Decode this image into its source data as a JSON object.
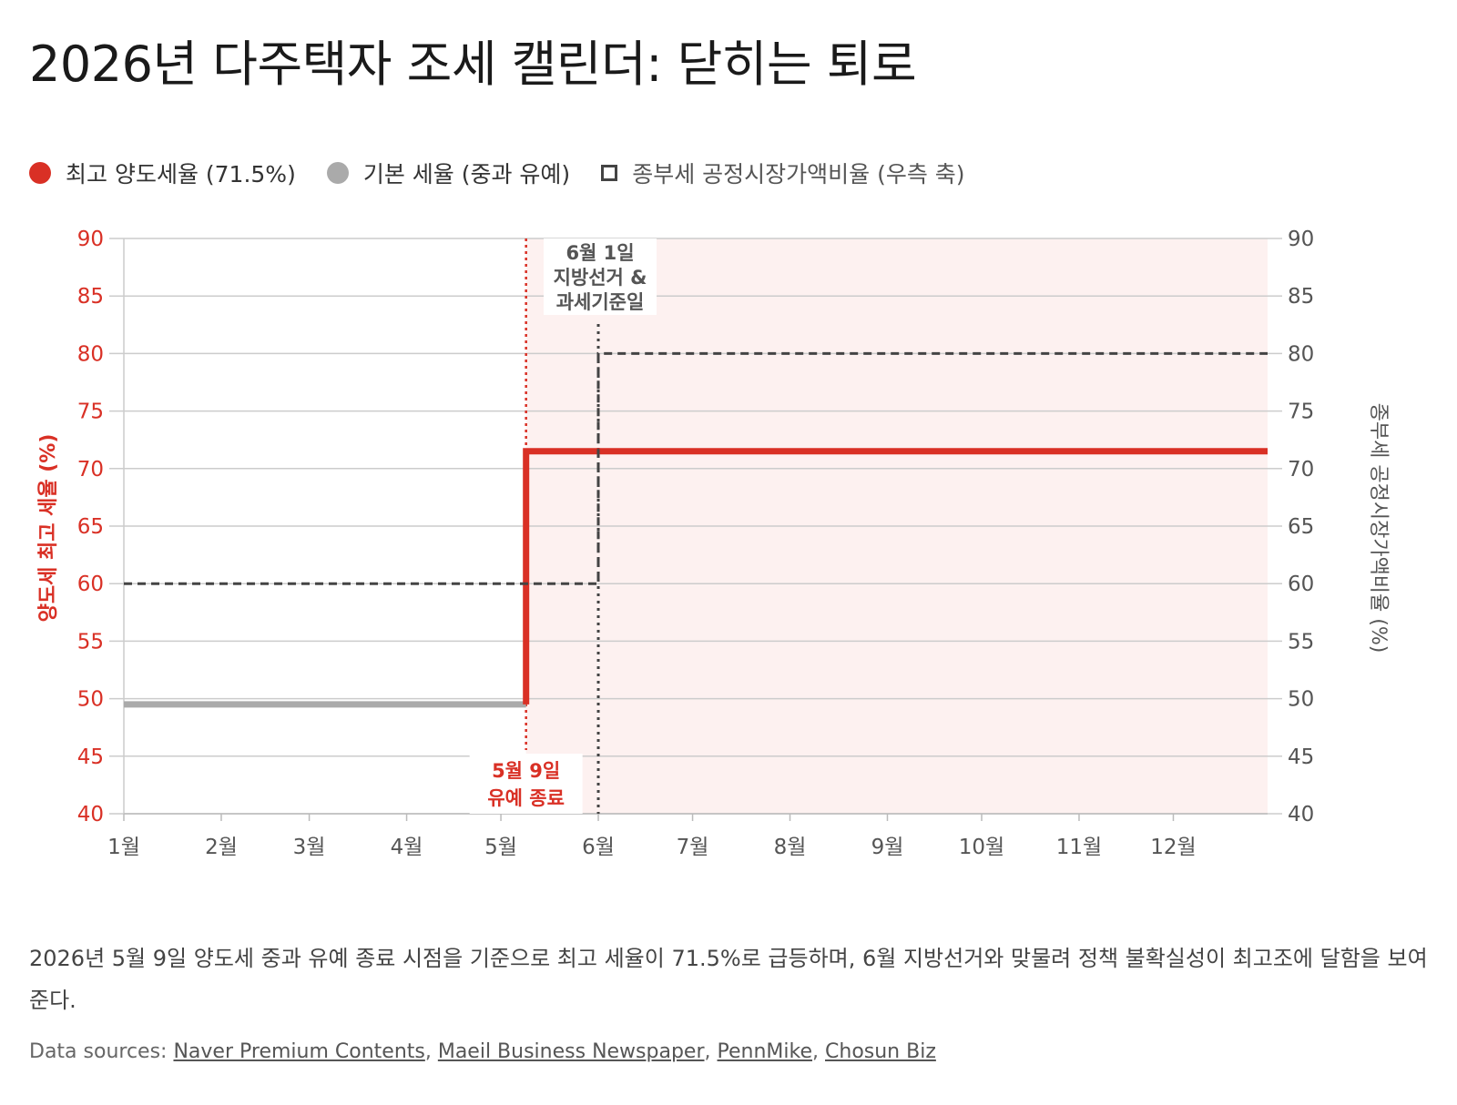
{
  "title": "2026년 다주택자 조세 캘린더: 닫히는 퇴로",
  "legend": [
    {
      "label": "최고 양도세율 (71.5%)",
      "color": "#d93025",
      "shape": "circle"
    },
    {
      "label": "기본 세율 (중과 유예)",
      "color": "#aaaaaa",
      "shape": "circle"
    },
    {
      "label": "종부세 공정시장가액비율 (우측 축)",
      "color": "#444444",
      "shape": "square-outline"
    }
  ],
  "chart_data": {
    "type": "line",
    "x_ticks": [
      "1월",
      "2월",
      "3월",
      "4월",
      "5월",
      "6월",
      "7월",
      "8월",
      "9월",
      "10월",
      "11월",
      "12월"
    ],
    "x_range": [
      "2026-01-01",
      "2026-12-31"
    ],
    "y_left": {
      "label": "양도세 최고 세율 (%)",
      "range": [
        40,
        90
      ],
      "ticks": [
        40,
        45,
        50,
        55,
        60,
        65,
        70,
        75,
        80,
        85,
        90
      ],
      "color": "#d93025"
    },
    "y_right": {
      "label": "종부세 공정시장가액비율 (%)",
      "range": [
        40,
        90
      ],
      "ticks": [
        40,
        45,
        50,
        55,
        60,
        65,
        70,
        75,
        80,
        85,
        90
      ],
      "color": "#555555"
    },
    "grid": true,
    "series": [
      {
        "name": "기본 세율 (중과 유예)",
        "axis": "left",
        "style": "step",
        "color": "#aaaaaa",
        "points": [
          {
            "x": "2026-01-01",
            "y": 49.5
          },
          {
            "x": "2026-05-09",
            "y": 49.5
          }
        ]
      },
      {
        "name": "최고 양도세율 (71.5%)",
        "axis": "left",
        "style": "step",
        "color": "#d93025",
        "points": [
          {
            "x": "2026-05-09",
            "y": 49.5
          },
          {
            "x": "2026-05-09",
            "y": 71.5
          },
          {
            "x": "2026-12-31",
            "y": 71.5
          }
        ]
      },
      {
        "name": "종부세 공정시장가액비율 (우측 축)",
        "axis": "right",
        "style": "dashed-step",
        "color": "#444444",
        "points": [
          {
            "x": "2026-01-01",
            "y": 60
          },
          {
            "x": "2026-06-01",
            "y": 60
          },
          {
            "x": "2026-06-01",
            "y": 80
          },
          {
            "x": "2026-12-31",
            "y": 80
          }
        ]
      }
    ],
    "shaded_region": {
      "from": "2026-05-09",
      "to": "2026-12-31",
      "color": "#fdf1f0"
    },
    "annotations": [
      {
        "x": "2026-05-09",
        "lines": [
          "5월 9일",
          "유예 종료"
        ],
        "color": "#d93025",
        "position": "bottom"
      },
      {
        "x": "2026-06-01",
        "lines": [
          "6월 1일",
          "지방선거 &",
          "과세기준일"
        ],
        "color": "#555555",
        "position": "top"
      }
    ]
  },
  "caption": "2026년 5월 9일 양도세 중과 유예 종료 시점을 기준으로 최고 세율이 71.5%로 급등하며, 6월 지방선거와 맞물려 정책 불확실성이 최고조에 달함을 보여준다.",
  "sources": {
    "prefix": "Data sources:",
    "links": [
      "Naver Premium Contents",
      "Maeil Business Newspaper",
      "PennMike",
      "Chosun Biz"
    ]
  }
}
